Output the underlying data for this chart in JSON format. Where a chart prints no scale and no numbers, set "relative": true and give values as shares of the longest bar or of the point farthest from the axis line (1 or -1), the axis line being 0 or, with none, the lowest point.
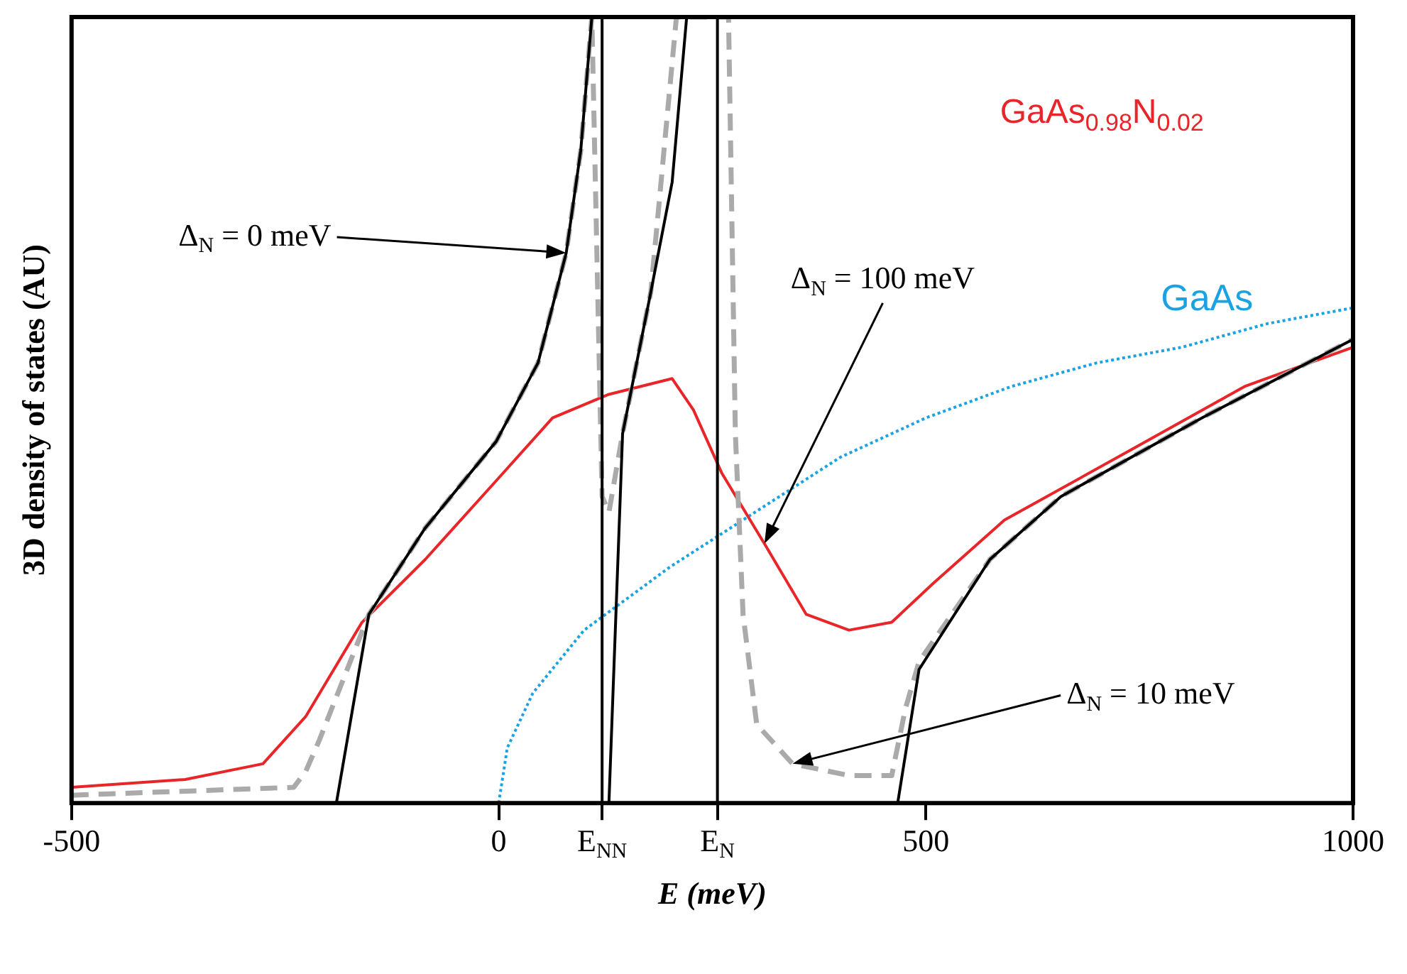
{
  "chart_data": {
    "type": "line",
    "relative": true,
    "xlabel": "E (meV)",
    "ylabel": "3D density of states (AU)",
    "xlim": [
      -500,
      1000
    ],
    "xticks": [
      -500,
      0,
      {
        "value": 121,
        "label": "E$_{NN}$"
      },
      {
        "value": 256,
        "label": "E$_{N}$"
      },
      500,
      1000
    ],
    "grid": false,
    "legend": false,
    "marker": "none",
    "series": [
      {
        "color": "#000000",
        "line_style": "solid",
        "x": [
          -500,
          -190,
          -152,
          -86,
          -3,
          46,
          79,
          96,
          109,
          121,
          121,
          129,
          145,
          178,
          203,
          220,
          256,
          256,
          467,
          492,
          575,
          658,
          823,
          1000
        ],
        "values": [
          0,
          0,
          0.24,
          0.35,
          0.46,
          0.56,
          0.7,
          0.83,
          1,
          1,
          0,
          0,
          0.47,
          0.65,
          0.79,
          1,
          1,
          0,
          0,
          0.17,
          0.31,
          0.39,
          0.49,
          0.59
        ]
      },
      {
        "color": "#aaaaaa",
        "line_style": "dashed",
        "x": [
          -500,
          -240,
          -226,
          -210,
          -152,
          -86,
          -3,
          46,
          79,
          96,
          109,
          121,
          129,
          145,
          178,
          208,
          269,
          277,
          286,
          302,
          344,
          410,
          460,
          476,
          492,
          575,
          658,
          823,
          1000
        ],
        "values": [
          0.01,
          0.02,
          0.04,
          0.08,
          0.24,
          0.35,
          0.46,
          0.56,
          0.7,
          0.83,
          1,
          0.39,
          0.37,
          0.47,
          0.65,
          1,
          1,
          0.47,
          0.24,
          0.1,
          0.05,
          0.035,
          0.035,
          0.12,
          0.18,
          0.31,
          0.39,
          0.49,
          0.59
        ]
      },
      {
        "color": "#e8262a",
        "line_style": "solid",
        "x": [
          -500,
          -367,
          -276,
          -226,
          -160,
          -86,
          -3,
          63,
          129,
          203,
          228,
          261,
          311,
          360,
          410,
          460,
          509,
          592,
          741,
          873,
          1000
        ],
        "values": [
          0.02,
          0.03,
          0.05,
          0.11,
          0.23,
          0.31,
          0.41,
          0.49,
          0.52,
          0.54,
          0.5,
          0.42,
          0.33,
          0.24,
          0.22,
          0.23,
          0.28,
          0.36,
          0.45,
          0.53,
          0.58
        ]
      },
      {
        "name": "GaAs",
        "color": "#1aa3e0",
        "line_style": "dotted",
        "x": [
          0,
          10,
          40,
          100,
          200,
          300,
          400,
          500,
          600,
          700,
          800,
          900,
          1000
        ],
        "values": [
          0,
          0.07,
          0.14,
          0.22,
          0.3,
          0.37,
          0.44,
          0.49,
          0.53,
          0.56,
          0.58,
          0.61,
          0.63
        ]
      }
    ],
    "annotations": [
      "Δ$_{N}$ = 0 meV",
      "Δ$_{N}$ = 100 meV",
      "Δ$_{N}$ = 10 meV",
      "GaAs$_{0.98}$N$_{0.02}$"
    ]
  }
}
